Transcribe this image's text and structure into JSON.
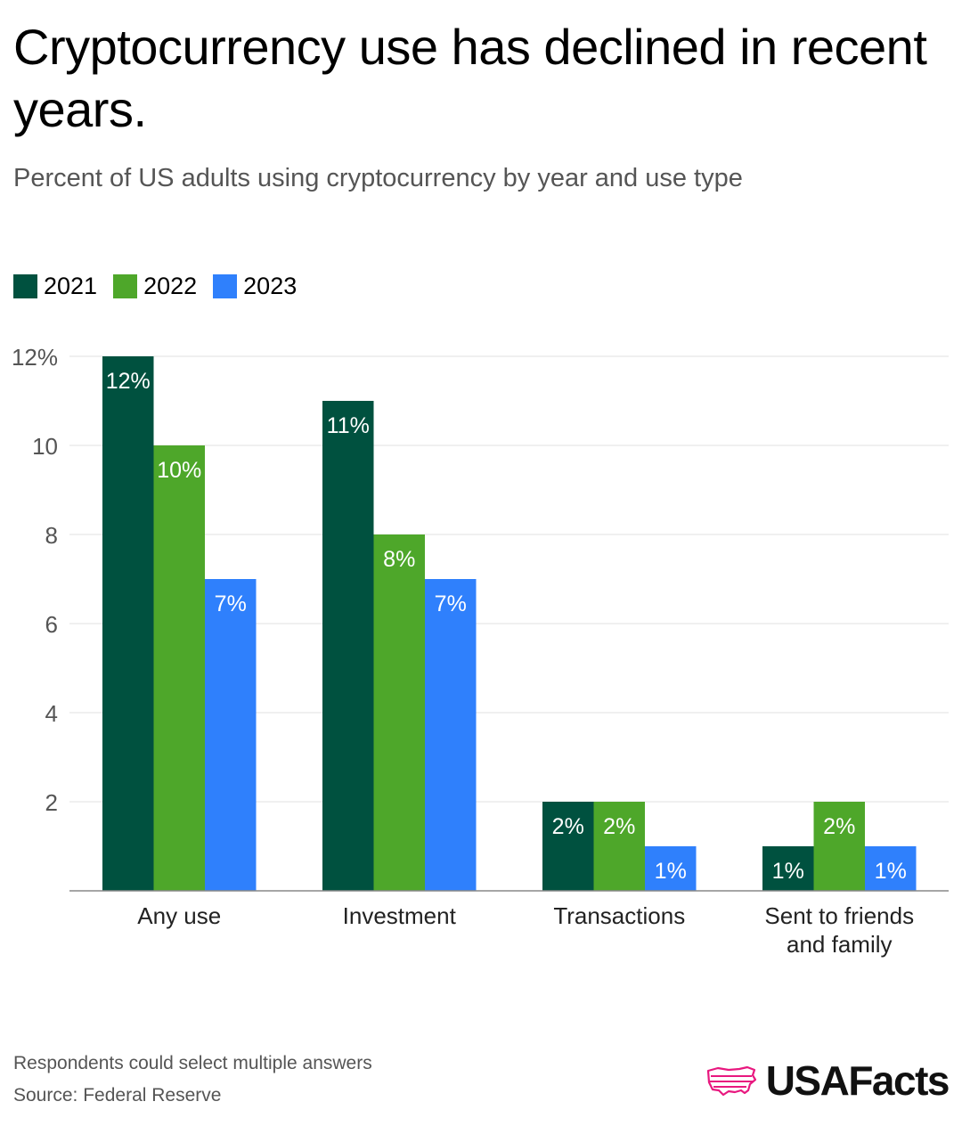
{
  "header": {
    "title": "Cryptocurrency use has declined in recent years.",
    "subtitle": "Percent of US adults using cryptocurrency by year and use type"
  },
  "legend": [
    {
      "label": "2021",
      "color": "#00513f"
    },
    {
      "label": "2022",
      "color": "#4ea72a"
    },
    {
      "label": "2023",
      "color": "#2f80fc"
    }
  ],
  "chart_data": {
    "type": "bar",
    "categories": [
      "Any use",
      "Investment",
      "Transactions",
      "Sent to friends and family"
    ],
    "category_lines": [
      [
        "Any use"
      ],
      [
        "Investment"
      ],
      [
        "Transactions"
      ],
      [
        "Sent to friends",
        "and family"
      ]
    ],
    "series": [
      {
        "name": "2021",
        "color": "#00513f",
        "values": [
          12,
          11,
          2,
          1
        ]
      },
      {
        "name": "2022",
        "color": "#4ea72a",
        "values": [
          10,
          8,
          2,
          2
        ]
      },
      {
        "name": "2023",
        "color": "#2f80fc",
        "values": [
          7,
          7,
          1,
          1
        ]
      }
    ],
    "data_labels": [
      [
        "12%",
        "11%",
        "2%",
        "1%"
      ],
      [
        "10%",
        "8%",
        "2%",
        "2%"
      ],
      [
        "7%",
        "7%",
        "1%",
        "1%"
      ]
    ],
    "ylim": [
      0,
      12
    ],
    "yticks": [
      2,
      4,
      6,
      8,
      10,
      12
    ],
    "ytick_labels": [
      "2",
      "4",
      "6",
      "8",
      "10",
      "12%"
    ],
    "grid": true,
    "legend_position": "top-left"
  },
  "footer": {
    "note": "Respondents could select multiple answers",
    "source": "Source: Federal Reserve",
    "brand": "USAFacts",
    "brand_icon": "usa-map-icon",
    "brand_color": "#e8187f"
  }
}
